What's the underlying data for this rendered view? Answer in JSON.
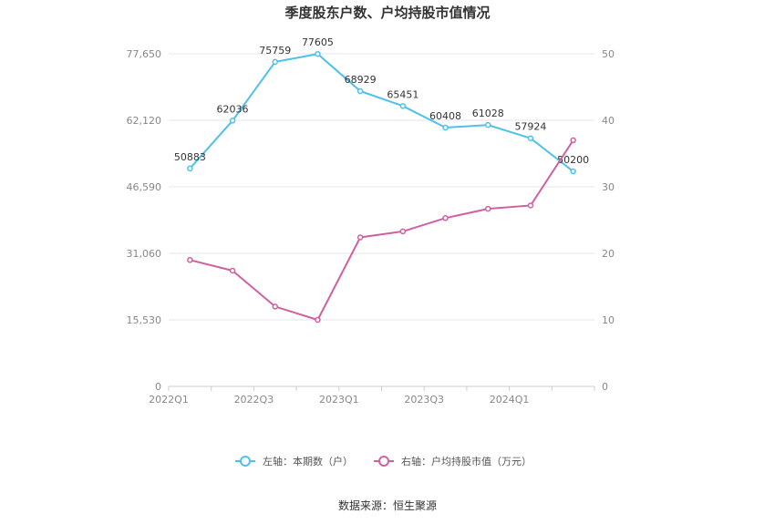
{
  "chart_data": {
    "type": "line",
    "title": "季度股东户数、户均持股市值情况",
    "categories": [
      "2022Q1",
      "2022Q2",
      "2022Q3",
      "2022Q4",
      "2023Q1",
      "2023Q2",
      "2023Q3",
      "2023Q4",
      "2024Q1",
      "2024Q2"
    ],
    "x_tick_labels": [
      "2022Q1",
      "2022Q3",
      "2023Q1",
      "2023Q3",
      "2024Q1"
    ],
    "left_axis": {
      "ticks": [
        "0",
        "15,530",
        "31,060",
        "46,590",
        "62,120",
        "77,650"
      ],
      "ylim": [
        0,
        77650
      ]
    },
    "right_axis": {
      "ticks": [
        "0",
        "10",
        "20",
        "30",
        "40",
        "50"
      ],
      "ylim": [
        0,
        50
      ]
    },
    "grid": true,
    "legend_position": "bottom",
    "series": [
      {
        "name": "左轴：本期数（户）",
        "axis": "left",
        "color": "#4fc1e9",
        "values": [
          50883,
          62036,
          75759,
          77605,
          68929,
          65451,
          60408,
          61028,
          57924,
          50200
        ],
        "labels": [
          "50883",
          "62036",
          "75759",
          "77605",
          "68929",
          "65451",
          "60408",
          "61028",
          "57924",
          "50200"
        ]
      },
      {
        "name": "右轴：户均持股市值（万元）",
        "axis": "right",
        "color": "#d0609f",
        "values": [
          19.0,
          17.4,
          12.0,
          10.0,
          22.4,
          23.3,
          25.3,
          26.7,
          27.2,
          37.0
        ]
      }
    ],
    "source": "数据来源：恒生聚源"
  }
}
